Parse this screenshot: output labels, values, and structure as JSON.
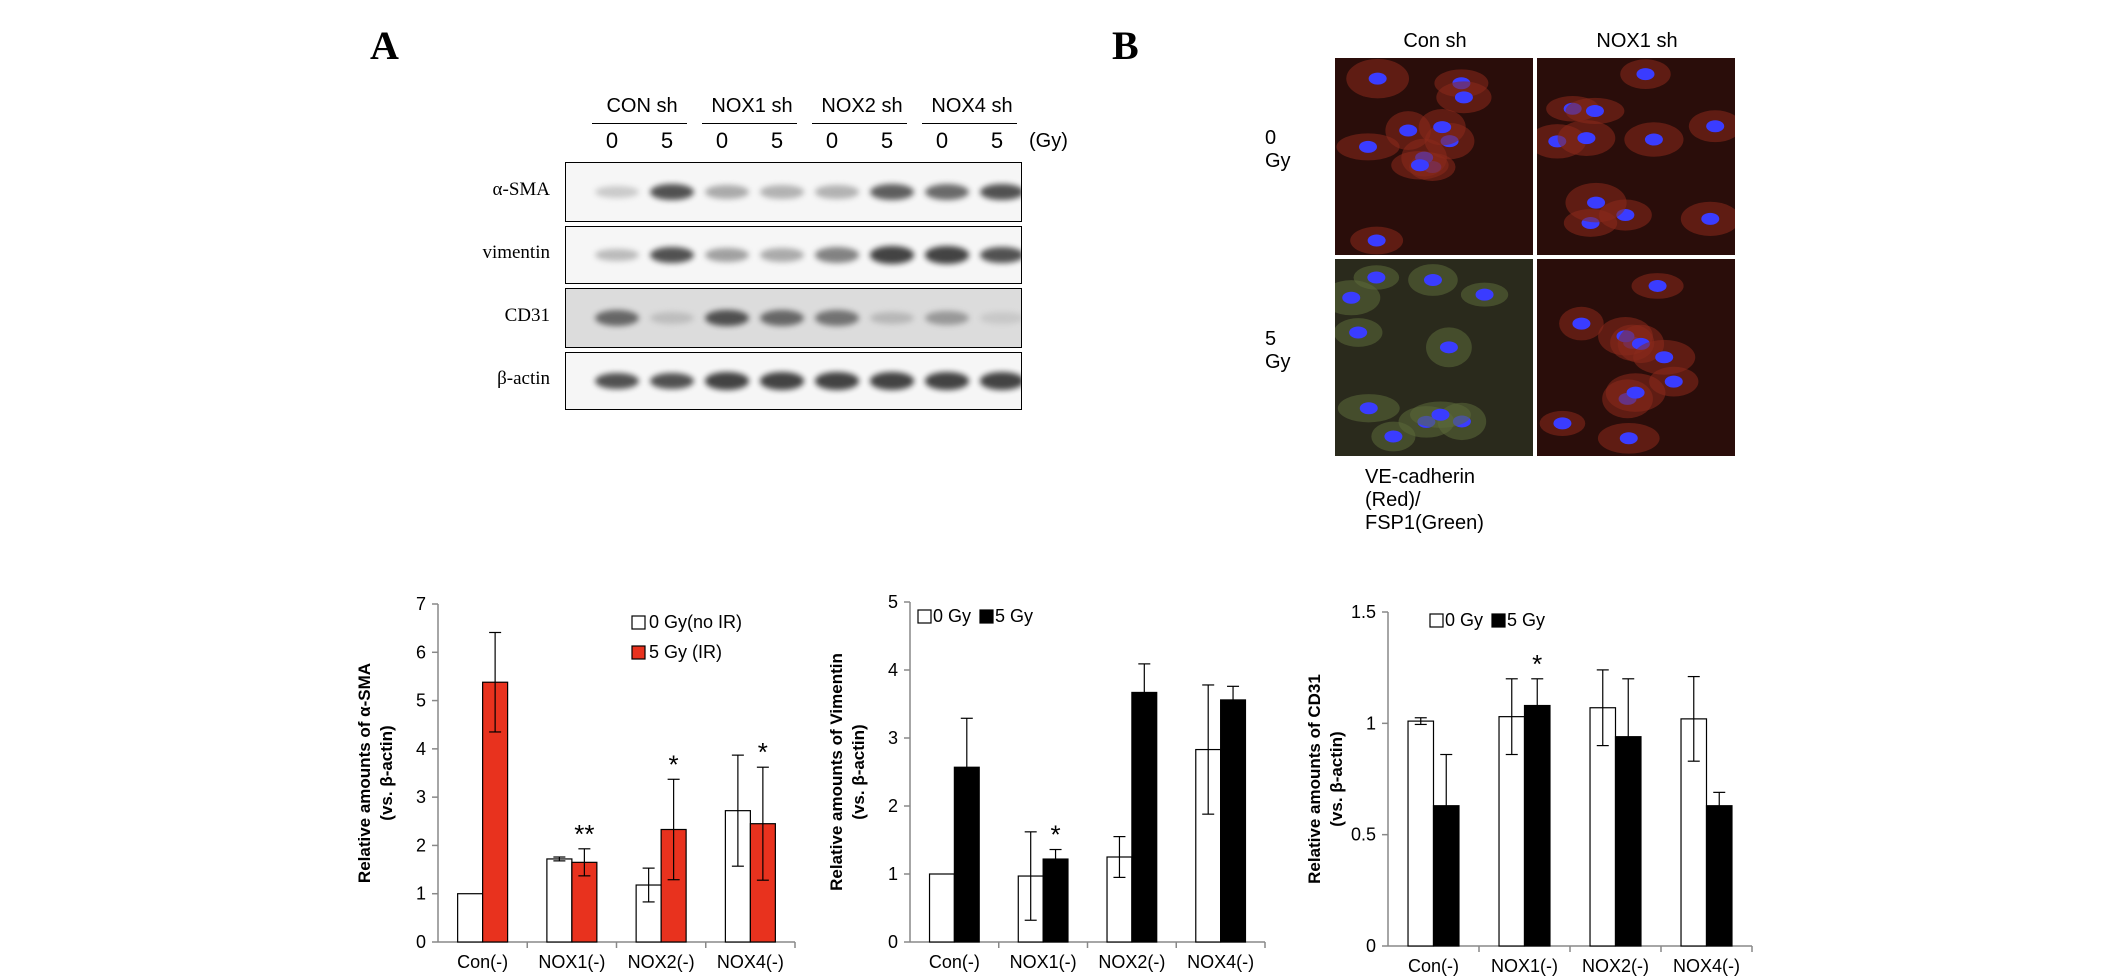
{
  "panels": {
    "a": "A",
    "b": "B"
  },
  "blot": {
    "groups": [
      "CON sh",
      "NOX1 sh",
      "NOX2 sh",
      "NOX4 sh"
    ],
    "doses": [
      "0",
      "5",
      "0",
      "5",
      "0",
      "5",
      "0",
      "5"
    ],
    "dose_unit": "(Gy)",
    "rows": [
      {
        "label": "α-SMA",
        "intensities": [
          0.25,
          0.85,
          0.45,
          0.4,
          0.4,
          0.8,
          0.75,
          0.85
        ]
      },
      {
        "label": "vimentin",
        "intensities": [
          0.35,
          0.85,
          0.5,
          0.45,
          0.65,
          0.9,
          0.9,
          0.85
        ]
      },
      {
        "label": "CD31",
        "intensities": [
          0.75,
          0.25,
          0.85,
          0.75,
          0.7,
          0.3,
          0.5,
          0.15
        ]
      },
      {
        "label": "β-actin",
        "intensities": [
          0.85,
          0.85,
          0.9,
          0.9,
          0.9,
          0.9,
          0.9,
          0.9
        ]
      }
    ]
  },
  "micrograph": {
    "columns": [
      "Con sh",
      "NOX1 sh"
    ],
    "rows": [
      "0 Gy",
      "5 Gy"
    ],
    "caption": "VE-cadherin (Red)/ FSP1(Green)"
  },
  "colors": {
    "red": "#e8321e",
    "black": "#000000",
    "white": "#ffffff"
  },
  "chart_data": [
    {
      "type": "bar",
      "ylabel": "Relative amounts of  α-SMA (vs. β-actin)",
      "categories": [
        "Con(-)",
        "NOX1(-)",
        "NOX2(-)",
        "NOX4(-)"
      ],
      "ylim": [
        0,
        7
      ],
      "yticks": [
        "0",
        "1",
        "2",
        "3",
        "4",
        "5",
        "6",
        "7"
      ],
      "legend": "top-right",
      "series": [
        {
          "name": "0 Gy(no IR)",
          "color": "#ffffff",
          "values": [
            1.0,
            1.72,
            1.18,
            2.72
          ],
          "errors": [
            0.0,
            0.04,
            0.35,
            1.15
          ]
        },
        {
          "name": "5 Gy (IR)",
          "color": "#e8321e",
          "values": [
            5.38,
            1.65,
            2.33,
            2.45
          ],
          "errors": [
            1.03,
            0.28,
            1.04,
            1.17
          ]
        }
      ],
      "annotations": [
        "",
        "**",
        "*",
        "*"
      ]
    },
    {
      "type": "bar",
      "ylabel": "Relative amounts of Vimentin (vs. β-actin)",
      "categories": [
        "Con(-)",
        "NOX1(-)",
        "NOX2(-)",
        "NOX4(-)"
      ],
      "ylim": [
        0,
        5
      ],
      "yticks": [
        "0",
        "1",
        "2",
        "3",
        "4",
        "5"
      ],
      "legend": "top-left",
      "series": [
        {
          "name": "0 Gy",
          "color": "#ffffff",
          "values": [
            1.0,
            0.97,
            1.25,
            2.83
          ],
          "errors": [
            0.0,
            0.65,
            0.3,
            0.95
          ]
        },
        {
          "name": "5 Gy",
          "color": "#000000",
          "values": [
            2.57,
            1.22,
            3.67,
            3.56
          ],
          "errors": [
            0.72,
            0.14,
            0.42,
            0.2
          ]
        }
      ],
      "annotations": [
        "",
        "*",
        "",
        ""
      ]
    },
    {
      "type": "bar",
      "ylabel": "Relative amounts  of CD31 (vs. β-actin)",
      "categories": [
        "Con(-)",
        "NOX1(-)",
        "NOX2(-)",
        "NOX4(-)"
      ],
      "ylim": [
        0,
        1.5
      ],
      "yticks": [
        "0",
        "0.5",
        "1",
        "1.5"
      ],
      "legend": "top-left",
      "series": [
        {
          "name": "0 Gy",
          "color": "#ffffff",
          "values": [
            1.01,
            1.03,
            1.07,
            1.02
          ],
          "errors": [
            0.015,
            0.17,
            0.17,
            0.19
          ]
        },
        {
          "name": "5 Gy",
          "color": "#000000",
          "values": [
            0.63,
            1.08,
            0.94,
            0.63
          ],
          "errors": [
            0.23,
            0.12,
            0.26,
            0.06
          ]
        }
      ],
      "annotations": [
        "",
        "*",
        "",
        ""
      ]
    }
  ]
}
